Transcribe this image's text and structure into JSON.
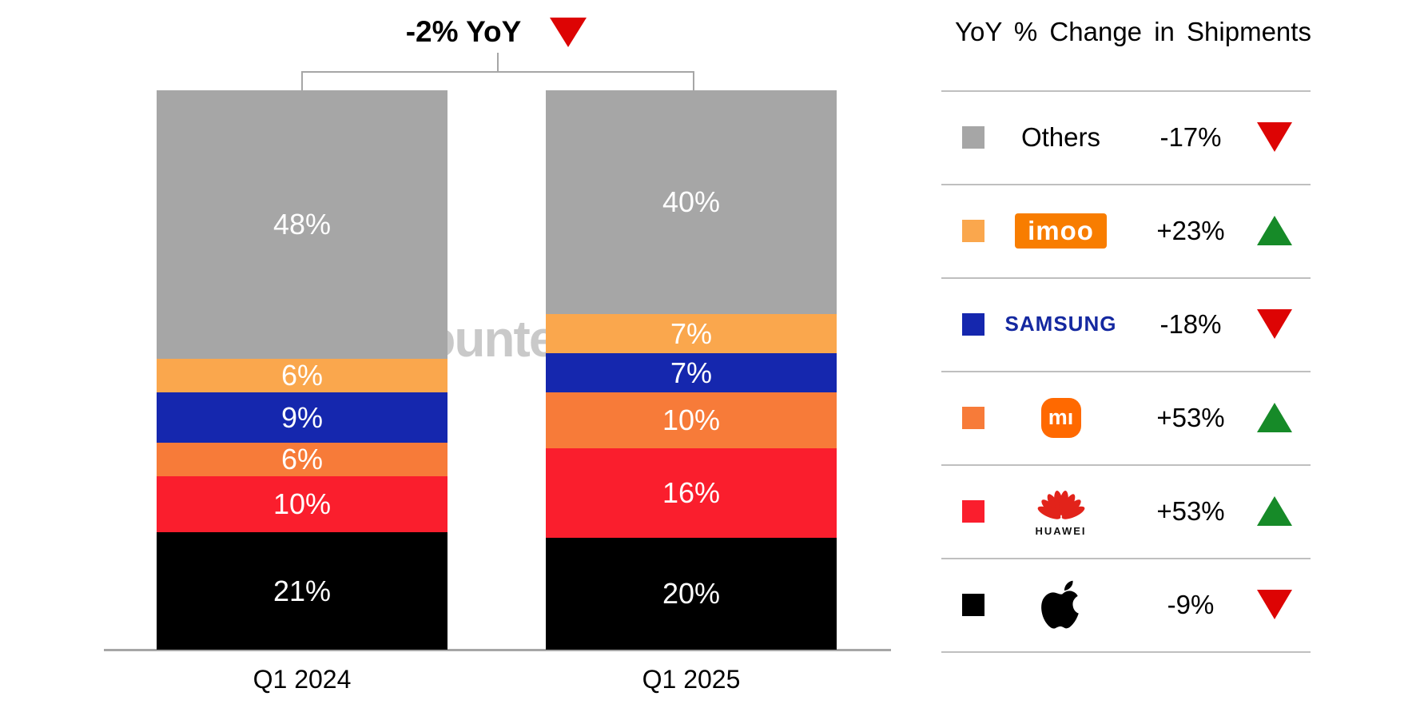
{
  "chart": {
    "yoy_summary": "-2% YoY",
    "yoy_summary_direction": "down",
    "categories": [
      "Q1 2024",
      "Q1 2025"
    ]
  },
  "watermark": {
    "brand": "Counterpoint"
  },
  "chart_data": {
    "type": "bar",
    "stacked": true,
    "unit": "%",
    "title": "-2% YoY",
    "categories": [
      "Q1 2024",
      "Q1 2025"
    ],
    "ylim": [
      0,
      100
    ],
    "legend_position": "right",
    "series": [
      {
        "name": "Others",
        "color": "#a6a6a6",
        "values": [
          48,
          40
        ],
        "labels": [
          "48%",
          "40%"
        ]
      },
      {
        "name": "imoo",
        "color": "#faa74d",
        "values": [
          6,
          7
        ],
        "labels": [
          "6%",
          "7%"
        ]
      },
      {
        "name": "Samsung",
        "color": "#1527ae",
        "values": [
          9,
          7
        ],
        "labels": [
          "9%",
          "7%"
        ]
      },
      {
        "name": "Xiaomi",
        "color": "#f77b39",
        "values": [
          6,
          10
        ],
        "labels": [
          "6%",
          "10%"
        ]
      },
      {
        "name": "Huawei",
        "color": "#fa1e2d",
        "values": [
          10,
          16
        ],
        "labels": [
          "10%",
          "16%"
        ]
      },
      {
        "name": "Apple",
        "color": "#000000",
        "values": [
          21,
          20
        ],
        "labels": [
          "21%",
          "20%"
        ]
      }
    ],
    "total_change": {
      "text": "-2% YoY",
      "direction": "down"
    }
  },
  "legend": {
    "title": "YoY % Change in Shipments",
    "colors": {
      "up": "#168a28",
      "down": "#dd0404"
    },
    "rows": [
      {
        "brand": "Others",
        "change": "-17%",
        "direction": "down",
        "swatch": "#a6a6a6"
      },
      {
        "brand": "imoo",
        "change": "+23%",
        "direction": "up",
        "swatch": "#faa74d"
      },
      {
        "brand": "Samsung",
        "change": "-18%",
        "direction": "down",
        "swatch": "#1527ae"
      },
      {
        "brand": "Xiaomi",
        "change": "+53%",
        "direction": "up",
        "swatch": "#f77b39"
      },
      {
        "brand": "Huawei",
        "change": "+53%",
        "direction": "up",
        "swatch": "#fa1e2d"
      },
      {
        "brand": "Apple",
        "change": "-9%",
        "direction": "down",
        "swatch": "#000000"
      }
    ],
    "imoo_logo_text": "imoo",
    "samsung_logo_text": "SAMSUNG",
    "mi_logo_text": "mı",
    "huawei_label": "HUAWEI"
  }
}
